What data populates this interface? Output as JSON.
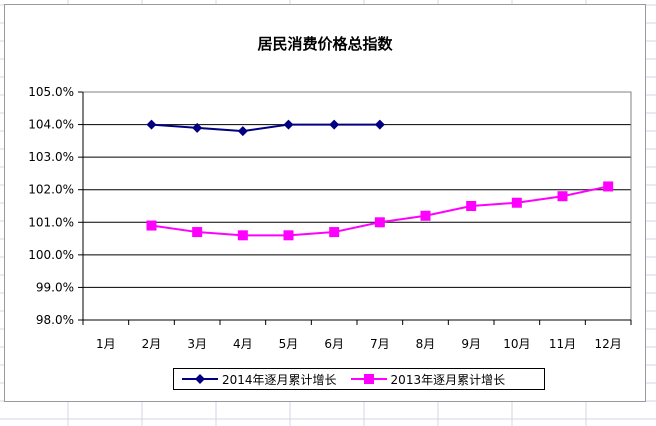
{
  "chart_data": {
    "type": "line",
    "title": "居民消费价格总指数",
    "categories": [
      "1月",
      "2月",
      "3月",
      "4月",
      "5月",
      "6月",
      "7月",
      "8月",
      "9月",
      "10月",
      "11月",
      "12月"
    ],
    "y_ticks": [
      "98.0%",
      "99.0%",
      "100.0%",
      "101.0%",
      "102.0%",
      "103.0%",
      "104.0%",
      "105.0%"
    ],
    "ylim": [
      98.0,
      105.0
    ],
    "grid": "horizontal",
    "legend_position": "bottom",
    "series": [
      {
        "name": "2014年逐月累计增长",
        "color": "#000080",
        "marker": "diamond",
        "values": [
          null,
          104.0,
          103.9,
          103.8,
          104.0,
          104.0,
          104.0,
          null,
          null,
          null,
          null,
          null
        ]
      },
      {
        "name": "2013年逐月累计增长",
        "color": "#ff00ff",
        "marker": "square",
        "values": [
          null,
          100.9,
          100.7,
          100.6,
          100.6,
          100.7,
          101.0,
          101.2,
          101.5,
          101.6,
          101.8,
          102.1
        ]
      }
    ]
  }
}
